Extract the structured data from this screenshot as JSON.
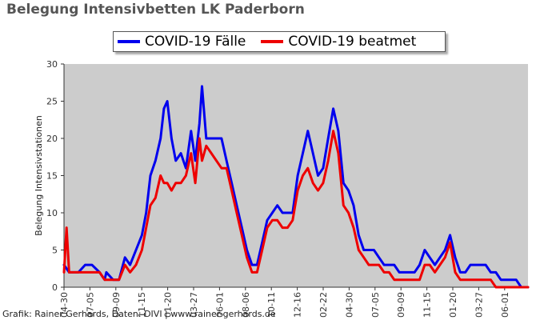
{
  "chart_data": {
    "type": "line",
    "title": "Belegung Intensivbetten LK Paderborn",
    "ylabel": "Belegung Intensivstationen",
    "xlabel": "",
    "ylim": [
      0,
      30
    ],
    "yticks": [
      0,
      5,
      10,
      15,
      20,
      25,
      30
    ],
    "xticks": [
      "04-30",
      "07-05",
      "09-09",
      "11-15",
      "01-20",
      "03-27",
      "06-01",
      "08-06",
      "10-11",
      "12-16",
      "02-22",
      "04-30",
      "07-05",
      "09-09",
      "11-15",
      "01-20",
      "03-27",
      "06-01"
    ],
    "legend": "top-center",
    "grid": false,
    "colors": {
      "plot_bg": "#cccccc",
      "series_1": "#0000ee",
      "series_2": "#ee0000"
    },
    "series": [
      {
        "name": "COVID-19 Fälle",
        "points": [
          [
            0,
            3
          ],
          [
            6,
            2
          ],
          [
            10,
            2
          ],
          [
            17,
            2
          ],
          [
            25,
            3
          ],
          [
            33,
            3
          ],
          [
            42,
            2
          ],
          [
            48,
            1
          ],
          [
            50,
            2
          ],
          [
            58,
            1
          ],
          [
            65,
            1
          ],
          [
            72,
            4
          ],
          [
            78,
            3
          ],
          [
            85,
            5
          ],
          [
            92,
            7
          ],
          [
            97,
            10
          ],
          [
            102,
            15
          ],
          [
            108,
            17
          ],
          [
            114,
            20
          ],
          [
            118,
            24
          ],
          [
            122,
            25
          ],
          [
            127,
            20
          ],
          [
            132,
            17
          ],
          [
            138,
            18
          ],
          [
            144,
            16
          ],
          [
            150,
            21
          ],
          [
            155,
            17
          ],
          [
            160,
            22
          ],
          [
            163,
            27
          ],
          [
            168,
            20
          ],
          [
            174,
            20
          ],
          [
            180,
            20
          ],
          [
            186,
            20
          ],
          [
            192,
            17
          ],
          [
            198,
            14
          ],
          [
            204,
            11
          ],
          [
            210,
            8
          ],
          [
            216,
            5
          ],
          [
            222,
            3
          ],
          [
            228,
            3
          ],
          [
            234,
            6
          ],
          [
            240,
            9
          ],
          [
            246,
            10
          ],
          [
            252,
            11
          ],
          [
            258,
            10
          ],
          [
            264,
            10
          ],
          [
            270,
            10
          ],
          [
            276,
            15
          ],
          [
            282,
            18
          ],
          [
            288,
            21
          ],
          [
            294,
            18
          ],
          [
            300,
            15
          ],
          [
            306,
            16
          ],
          [
            312,
            20
          ],
          [
            318,
            24
          ],
          [
            324,
            21
          ],
          [
            330,
            14
          ],
          [
            336,
            13
          ],
          [
            342,
            11
          ],
          [
            348,
            7
          ],
          [
            354,
            5
          ],
          [
            360,
            5
          ],
          [
            366,
            5
          ],
          [
            372,
            4
          ],
          [
            378,
            3
          ],
          [
            384,
            3
          ],
          [
            390,
            3
          ],
          [
            396,
            2
          ],
          [
            402,
            2
          ],
          [
            408,
            2
          ],
          [
            414,
            2
          ],
          [
            420,
            3
          ],
          [
            426,
            5
          ],
          [
            432,
            4
          ],
          [
            438,
            3
          ],
          [
            444,
            4
          ],
          [
            450,
            5
          ],
          [
            456,
            7
          ],
          [
            462,
            4
          ],
          [
            468,
            2
          ],
          [
            474,
            2
          ],
          [
            480,
            3
          ],
          [
            486,
            3
          ],
          [
            492,
            3
          ],
          [
            498,
            3
          ],
          [
            504,
            2
          ],
          [
            510,
            2
          ],
          [
            516,
            1
          ],
          [
            522,
            1
          ],
          [
            528,
            1
          ],
          [
            534,
            1
          ],
          [
            540,
            0
          ],
          [
            548,
            0
          ]
        ]
      },
      {
        "name": "COVID-19 beatmet",
        "points": [
          [
            0,
            2
          ],
          [
            3,
            8
          ],
          [
            6,
            2
          ],
          [
            10,
            2
          ],
          [
            17,
            2
          ],
          [
            25,
            2
          ],
          [
            33,
            2
          ],
          [
            42,
            2
          ],
          [
            48,
            1
          ],
          [
            50,
            1
          ],
          [
            58,
            1
          ],
          [
            65,
            1
          ],
          [
            72,
            3
          ],
          [
            78,
            2
          ],
          [
            85,
            3
          ],
          [
            92,
            5
          ],
          [
            97,
            8
          ],
          [
            102,
            11
          ],
          [
            108,
            12
          ],
          [
            114,
            15
          ],
          [
            118,
            14
          ],
          [
            122,
            14
          ],
          [
            127,
            13
          ],
          [
            132,
            14
          ],
          [
            138,
            14
          ],
          [
            144,
            15
          ],
          [
            150,
            18
          ],
          [
            155,
            14
          ],
          [
            160,
            20
          ],
          [
            163,
            17
          ],
          [
            168,
            19
          ],
          [
            174,
            18
          ],
          [
            180,
            17
          ],
          [
            186,
            16
          ],
          [
            192,
            16
          ],
          [
            198,
            13
          ],
          [
            204,
            10
          ],
          [
            210,
            7
          ],
          [
            216,
            4
          ],
          [
            222,
            2
          ],
          [
            228,
            2
          ],
          [
            234,
            5
          ],
          [
            240,
            8
          ],
          [
            246,
            9
          ],
          [
            252,
            9
          ],
          [
            258,
            8
          ],
          [
            264,
            8
          ],
          [
            270,
            9
          ],
          [
            276,
            13
          ],
          [
            282,
            15
          ],
          [
            288,
            16
          ],
          [
            294,
            14
          ],
          [
            300,
            13
          ],
          [
            306,
            14
          ],
          [
            312,
            17
          ],
          [
            318,
            21
          ],
          [
            324,
            18
          ],
          [
            330,
            11
          ],
          [
            336,
            10
          ],
          [
            342,
            8
          ],
          [
            348,
            5
          ],
          [
            354,
            4
          ],
          [
            360,
            3
          ],
          [
            366,
            3
          ],
          [
            372,
            3
          ],
          [
            378,
            2
          ],
          [
            384,
            2
          ],
          [
            390,
            1
          ],
          [
            396,
            1
          ],
          [
            402,
            1
          ],
          [
            408,
            1
          ],
          [
            414,
            1
          ],
          [
            420,
            1
          ],
          [
            426,
            3
          ],
          [
            432,
            3
          ],
          [
            438,
            2
          ],
          [
            444,
            3
          ],
          [
            450,
            4
          ],
          [
            456,
            6
          ],
          [
            462,
            2
          ],
          [
            468,
            1
          ],
          [
            474,
            1
          ],
          [
            480,
            1
          ],
          [
            486,
            1
          ],
          [
            492,
            1
          ],
          [
            498,
            1
          ],
          [
            504,
            1
          ],
          [
            510,
            0
          ],
          [
            516,
            0
          ],
          [
            522,
            0
          ],
          [
            528,
            0
          ],
          [
            534,
            0
          ],
          [
            540,
            0
          ],
          [
            548,
            0
          ]
        ]
      }
    ]
  },
  "footer": "Grafik: Rainer Gerhards, Daten: DIVI | www.rainer-gerhards.de"
}
